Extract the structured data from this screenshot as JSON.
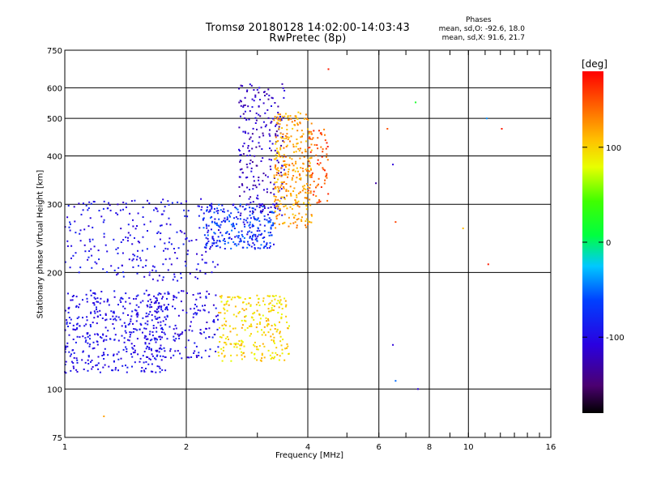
{
  "title": "Tromsø 20180128 14:02:00-14:03:43",
  "subtitle": "RwPretec (8p)",
  "stats": {
    "heading": "Phases",
    "line1": "mean, sd,O: -92.6, 18.0",
    "line2": "mean, sd,X:  91.6, 21.7"
  },
  "chart_data": {
    "type": "scatter",
    "title": "Tromsø 20180128 14:02:00-14:03:43",
    "subtitle": "RwPretec (8p)",
    "xlabel": "Frequency [MHz]",
    "ylabel": "Stationary phase Virtual Height [km]",
    "xscale": "log",
    "yscale": "log",
    "xlim": [
      1,
      16
    ],
    "ylim": [
      75,
      750
    ],
    "x_ticks": [
      1,
      2,
      4,
      6,
      8,
      10,
      16
    ],
    "x_tick_labels": [
      "1",
      "2",
      "4",
      "6",
      "8",
      "10",
      "16"
    ],
    "y_ticks": [
      75,
      100,
      200,
      300,
      400,
      500,
      600,
      750
    ],
    "y_tick_labels": [
      "75",
      "100",
      "200",
      "300",
      "400",
      "500",
      "600",
      "750"
    ],
    "grid": true,
    "colorbar": {
      "label": "[deg]",
      "range": [
        -180,
        180
      ],
      "ticks": [
        100,
        0,
        -100
      ],
      "tick_labels": [
        "100",
        "0",
        "-100"
      ],
      "colormap": "rainbow (black-purple-blue-cyan-green-yellow-orange-red)"
    },
    "clusters": [
      {
        "name": "",
        "x": [
          1.0,
          1.8
        ],
        "y": [
          110,
          180
        ],
        "phase": [
          -110,
          -85
        ],
        "count": 420
      },
      {
        "name": "",
        "x": [
          1.6,
          2.4
        ],
        "y": [
          120,
          180
        ],
        "phase": [
          -120,
          -80
        ],
        "count": 160
      },
      {
        "name": "",
        "x": [
          2.4,
          3.6
        ],
        "y": [
          118,
          175
        ],
        "phase": [
          75,
          120
        ],
        "count": 260
      },
      {
        "name": "",
        "x": [
          1.0,
          2.4
        ],
        "y": [
          190,
          310
        ],
        "phase": [
          -115,
          -80
        ],
        "count": 260
      },
      {
        "name": "",
        "x": [
          2.2,
          3.3
        ],
        "y": [
          230,
          300
        ],
        "phase": [
          -105,
          -45
        ],
        "count": 260
      },
      {
        "name": "",
        "x": [
          2.7,
          3.5
        ],
        "y": [
          280,
          620
        ],
        "phase": [
          -140,
          -95
        ],
        "count": 240
      },
      {
        "name": "",
        "x": [
          3.3,
          4.1
        ],
        "y": [
          260,
          520
        ],
        "phase": [
          100,
          140
        ],
        "count": 320
      },
      {
        "name": "",
        "x": [
          4.0,
          4.5
        ],
        "y": [
          300,
          470
        ],
        "phase": [
          130,
          170
        ],
        "count": 70
      }
    ],
    "sparse_points": [
      {
        "x": 1.25,
        "y": 85,
        "phase": 120
      },
      {
        "x": 6.3,
        "y": 470,
        "phase": 150
      },
      {
        "x": 6.5,
        "y": 380,
        "phase": -110
      },
      {
        "x": 6.6,
        "y": 270,
        "phase": 155
      },
      {
        "x": 6.5,
        "y": 130,
        "phase": -110
      },
      {
        "x": 6.6,
        "y": 105,
        "phase": -50
      },
      {
        "x": 7.4,
        "y": 550,
        "phase": 20
      },
      {
        "x": 7.5,
        "y": 100,
        "phase": -110
      },
      {
        "x": 9.7,
        "y": 260,
        "phase": 110
      },
      {
        "x": 11.1,
        "y": 500,
        "phase": -40
      },
      {
        "x": 11.2,
        "y": 210,
        "phase": 170
      },
      {
        "x": 12.1,
        "y": 470,
        "phase": 170
      },
      {
        "x": 4.5,
        "y": 670,
        "phase": 170
      },
      {
        "x": 5.9,
        "y": 340,
        "phase": -130
      }
    ]
  }
}
